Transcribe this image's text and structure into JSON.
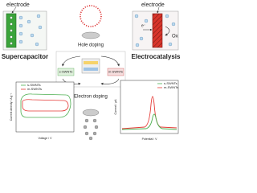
{
  "supercapacitor": {
    "electrode_label": "electrode",
    "title": "Supercapacitor"
  },
  "electrocatalysis": {
    "electrode_label": "electrode",
    "electron": "e⁻",
    "oxidant": "Ox",
    "title": "Electrocatalysis"
  },
  "center": {
    "hole_doping": "Hole doping",
    "electron_doping": "Electron doping",
    "left_box": "s-SWNTs",
    "right_box": "m-SWNTs"
  },
  "cv_plot": {
    "y_label": "Current density / A g⁻¹",
    "x_label": "Voltage / V",
    "legend": [
      "s-SWNTs",
      "m-SWNTs"
    ]
  },
  "dpv_plot": {
    "y_label": "Current / μA",
    "x_label": "Potential / V",
    "legend": [
      "s-SWNTs",
      "m-SWNTs"
    ]
  }
}
